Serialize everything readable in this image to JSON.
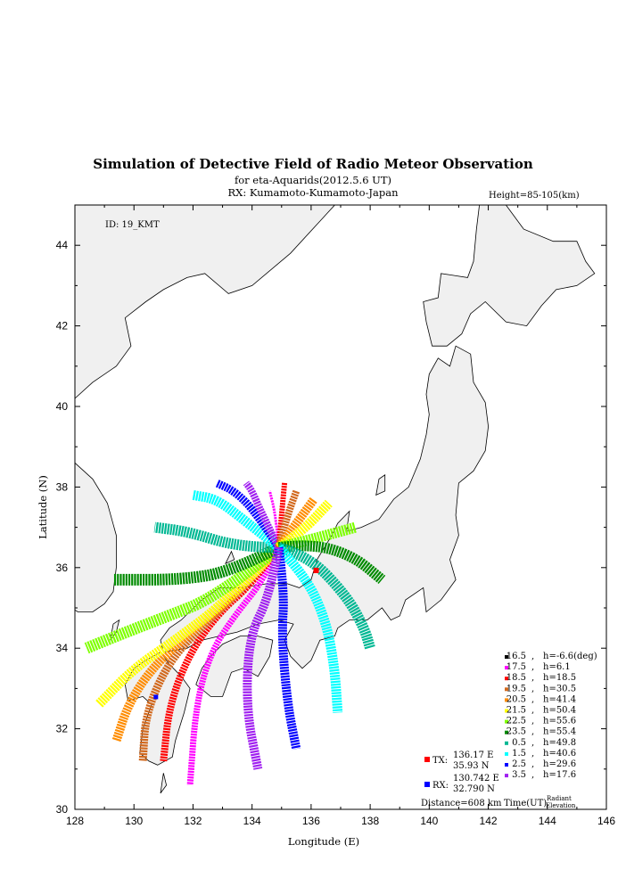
{
  "header": {
    "title": "Simulation of Detective Field of Radio Meteor Observation",
    "subtitle": "for eta-Aquarids(2012.5.6 UT)",
    "rx_line": "RX: Kumamoto-Kumamoto-Japan",
    "height": "Height=85-105(km)"
  },
  "map": {
    "id_label": "ID: 19_KMT",
    "x_axis_label": "Longitude (E)",
    "y_axis_label": "Latitude (N)",
    "x_range": [
      128,
      146
    ],
    "y_range": [
      30,
      45
    ],
    "x_ticks": [
      "128",
      "130",
      "132",
      "134",
      "136",
      "138",
      "140",
      "142",
      "144",
      "146"
    ],
    "y_ticks": [
      "30",
      "32",
      "34",
      "36",
      "38",
      "40",
      "42",
      "44"
    ],
    "land_color": "#f0f0f0"
  },
  "stations": {
    "tx": {
      "label": "TX:",
      "lon_text": "136.17 E",
      "lat_text": "35.93 N",
      "lon": 136.17,
      "lat": 35.93,
      "color": "#ff0000"
    },
    "rx": {
      "label": "RX:",
      "lon_text": "130.742 E",
      "lat_text": "32.790 N",
      "lon": 130.742,
      "lat": 32.79,
      "color": "#0000ff"
    },
    "distance": "Distance=608 km"
  },
  "legend": {
    "time_label": "Time(UT)",
    "elev_label_1": "Radiant",
    "elev_label_2": "Elevation",
    "entries": [
      {
        "time": "16.5",
        "elev": "h=-6.6(deg)",
        "color": "#000000"
      },
      {
        "time": "17.5",
        "elev": "h=6.1",
        "color": "#ff00ff"
      },
      {
        "time": "18.5",
        "elev": "h=18.5",
        "color": "#ff0000"
      },
      {
        "time": "19.5",
        "elev": "h=30.5",
        "color": "#d2691e"
      },
      {
        "time": "20.5",
        "elev": "h=41.4",
        "color": "#ff8c00"
      },
      {
        "time": "21.5",
        "elev": "h=50.4",
        "color": "#ffff00"
      },
      {
        "time": "22.5",
        "elev": "h=55.6",
        "color": "#7fff00"
      },
      {
        "time": "23.5",
        "elev": "h=55.4",
        "color": "#008b00"
      },
      {
        "time": "0.5",
        "elev": "h=49.8",
        "color": "#00b894"
      },
      {
        "time": "1.5",
        "elev": "h=40.6",
        "color": "#00ffff"
      },
      {
        "time": "2.5",
        "elev": "h=29.6",
        "color": "#0000ff"
      },
      {
        "time": "3.5",
        "elev": "h=17.6",
        "color": "#a020f0"
      }
    ]
  },
  "fields": [
    {
      "time": "17.5",
      "color": "#ff00ff",
      "path": [
        [
          134.9,
          36.5
        ],
        [
          134.4,
          35.7
        ],
        [
          133.4,
          34.8
        ],
        [
          132.6,
          33.9
        ],
        [
          132.1,
          32.6
        ],
        [
          131.9,
          30.6
        ]
      ],
      "width": 7
    },
    {
      "time": "18.5",
      "color": "#ff0000",
      "path": [
        [
          134.9,
          36.5
        ],
        [
          134.0,
          35.6
        ],
        [
          132.9,
          34.9
        ],
        [
          131.9,
          33.9
        ],
        [
          131.2,
          32.6
        ],
        [
          131.0,
          31.2
        ]
      ],
      "width": 8
    },
    {
      "time": "19.5",
      "color": "#d2691e",
      "path": [
        [
          134.9,
          36.5
        ],
        [
          133.7,
          35.5
        ],
        [
          132.4,
          34.6
        ],
        [
          131.2,
          33.7
        ],
        [
          130.4,
          32.4
        ],
        [
          130.3,
          31.2
        ]
      ],
      "width": 9
    },
    {
      "time": "20.5",
      "color": "#ff8c00",
      "path": [
        [
          134.9,
          36.5
        ],
        [
          133.4,
          35.3
        ],
        [
          131.9,
          34.4
        ],
        [
          130.6,
          33.5
        ],
        [
          129.8,
          32.6
        ],
        [
          129.4,
          31.7
        ]
      ],
      "width": 10
    },
    {
      "time": "21.5",
      "color": "#ffff00",
      "path": [
        [
          134.9,
          36.5
        ],
        [
          133.2,
          35.2
        ],
        [
          131.4,
          34.2
        ],
        [
          130.0,
          33.5
        ],
        [
          128.8,
          32.6
        ]
      ],
      "width": 11
    },
    {
      "time": "22.5",
      "color": "#7fff00",
      "path": [
        [
          134.9,
          36.5
        ],
        [
          132.9,
          35.3
        ],
        [
          130.8,
          34.7
        ],
        [
          129.4,
          34.3
        ],
        [
          128.4,
          34.0
        ]
      ],
      "width": 13
    },
    {
      "time": "23.5",
      "color": "#008b00",
      "path": [
        [
          134.9,
          36.5
        ],
        [
          133.3,
          35.9
        ],
        [
          131.6,
          35.7
        ],
        [
          129.3,
          35.7
        ]
      ],
      "width": 13
    },
    {
      "time": "0.5a",
      "color": "#00b894",
      "path": [
        [
          134.9,
          36.5
        ],
        [
          133.6,
          36.5
        ],
        [
          131.8,
          36.9
        ],
        [
          130.7,
          37.0
        ]
      ],
      "width": 12
    },
    {
      "time": "1.5a",
      "color": "#00ffff",
      "path": [
        [
          134.9,
          36.5
        ],
        [
          133.7,
          37.2
        ],
        [
          132.8,
          37.7
        ],
        [
          132.0,
          37.8
        ]
      ],
      "width": 11
    },
    {
      "time": "2.5a",
      "color": "#0000ff",
      "path": [
        [
          134.9,
          36.5
        ],
        [
          134.1,
          37.4
        ],
        [
          133.4,
          37.9
        ],
        [
          132.8,
          38.1
        ]
      ],
      "width": 9
    },
    {
      "time": "3.5a",
      "color": "#a020f0",
      "path": [
        [
          134.9,
          36.5
        ],
        [
          134.3,
          37.4
        ],
        [
          134.0,
          37.9
        ],
        [
          133.8,
          38.1
        ]
      ],
      "width": 8
    },
    {
      "time": "17.5n",
      "color": "#ff00ff",
      "path": [
        [
          134.9,
          36.5
        ],
        [
          134.8,
          37.3
        ],
        [
          134.6,
          37.9
        ]
      ],
      "width": 3
    },
    {
      "time": "18.5n",
      "color": "#ff0000",
      "path": [
        [
          134.9,
          36.5
        ],
        [
          135.0,
          37.3
        ],
        [
          135.1,
          38.1
        ]
      ],
      "width": 6
    },
    {
      "time": "19.5n",
      "color": "#d2691e",
      "path": [
        [
          134.9,
          36.5
        ],
        [
          135.2,
          37.3
        ],
        [
          135.5,
          37.9
        ]
      ],
      "width": 8
    },
    {
      "time": "20.5n",
      "color": "#ff8c00",
      "path": [
        [
          134.9,
          36.5
        ],
        [
          135.4,
          37.0
        ],
        [
          136.1,
          37.7
        ]
      ],
      "width": 10
    },
    {
      "time": "21.5n",
      "color": "#ffff00",
      "path": [
        [
          134.9,
          36.5
        ],
        [
          135.7,
          36.9
        ],
        [
          136.6,
          37.6
        ]
      ],
      "width": 11
    },
    {
      "time": "22.5n",
      "color": "#7fff00",
      "path": [
        [
          134.9,
          36.5
        ],
        [
          136.0,
          36.7
        ],
        [
          137.5,
          37.0
        ]
      ],
      "width": 12
    },
    {
      "time": "23.5n",
      "color": "#008b00",
      "path": [
        [
          134.9,
          36.5
        ],
        [
          136.0,
          36.6
        ],
        [
          137.4,
          36.3
        ],
        [
          138.4,
          35.7
        ]
      ],
      "width": 12
    },
    {
      "time": "0.5",
      "color": "#00b894",
      "path": [
        [
          134.9,
          36.5
        ],
        [
          135.9,
          36.3
        ],
        [
          137.2,
          35.3
        ],
        [
          137.8,
          34.5
        ],
        [
          138.0,
          34.0
        ]
      ],
      "width": 12
    },
    {
      "time": "1.5",
      "color": "#00ffff",
      "path": [
        [
          134.9,
          36.5
        ],
        [
          135.8,
          35.8
        ],
        [
          136.5,
          34.7
        ],
        [
          136.8,
          33.5
        ],
        [
          136.9,
          32.4
        ]
      ],
      "width": 11
    },
    {
      "time": "2.5",
      "color": "#0000ff",
      "path": [
        [
          134.9,
          36.5
        ],
        [
          135.1,
          35.4
        ],
        [
          135.0,
          34.3
        ],
        [
          135.2,
          32.6
        ],
        [
          135.5,
          31.5
        ]
      ],
      "width": 10
    },
    {
      "time": "3.5",
      "color": "#a020f0",
      "path": [
        [
          134.9,
          36.5
        ],
        [
          134.6,
          35.3
        ],
        [
          133.9,
          34.3
        ],
        [
          133.8,
          32.5
        ],
        [
          134.2,
          31.0
        ]
      ],
      "width": 10
    }
  ]
}
